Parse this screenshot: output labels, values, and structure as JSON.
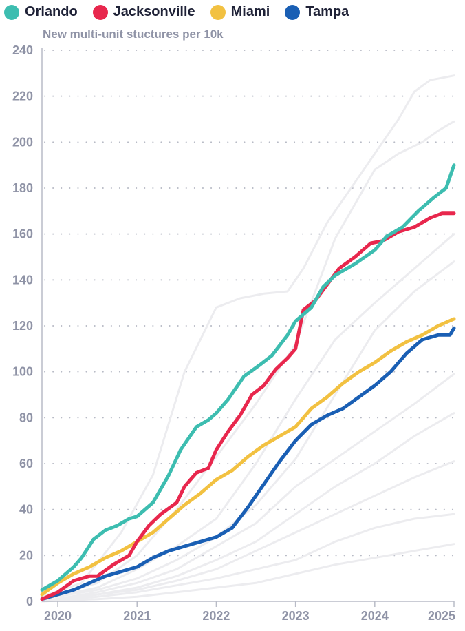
{
  "chart_data": {
    "type": "line",
    "subtitle": "New multi-unit stuctures per 10k",
    "x_ticks": [
      {
        "label": "2020",
        "value": 2020.0
      },
      {
        "label": "2021",
        "value": 2021.0
      },
      {
        "label": "2022",
        "value": 2022.0
      },
      {
        "label": "2023",
        "value": 2023.0
      },
      {
        "label": "2024",
        "value": 2024.0
      },
      {
        "label": "2025",
        "value": 2025.0
      }
    ],
    "xlim": [
      2019.8,
      2025.0
    ],
    "ylim": [
      0,
      240
    ],
    "y_ticks": [
      0,
      20,
      40,
      60,
      80,
      100,
      120,
      140,
      160,
      180,
      200,
      220,
      240
    ],
    "grid": "horizontal dotted",
    "legend_position": "top-left",
    "series": [
      {
        "name": "Orlando",
        "color": "#3dbdb0",
        "x": [
          2019.8,
          2020.0,
          2020.2,
          2020.3,
          2020.45,
          2020.6,
          2020.75,
          2020.9,
          2021.0,
          2021.2,
          2021.4,
          2021.55,
          2021.75,
          2021.9,
          2022.0,
          2022.15,
          2022.35,
          2022.55,
          2022.7,
          2022.9,
          2023.0,
          2023.2,
          2023.35,
          2023.5,
          2023.75,
          2024.0,
          2024.15,
          2024.35,
          2024.55,
          2024.75,
          2024.9,
          2025.0
        ],
        "y": [
          5,
          9,
          15,
          19,
          27,
          31,
          33,
          36,
          37,
          43,
          55,
          66,
          76,
          79,
          82,
          88,
          98,
          103,
          107,
          116,
          122,
          128,
          137,
          142,
          147,
          153,
          159,
          163,
          170,
          176,
          180,
          190
        ]
      },
      {
        "name": "Jacksonville",
        "color": "#e8274d",
        "x": [
          2019.8,
          2020.0,
          2020.2,
          2020.4,
          2020.5,
          2020.7,
          2020.9,
          2021.0,
          2021.15,
          2021.3,
          2021.5,
          2021.6,
          2021.75,
          2021.9,
          2022.0,
          2022.15,
          2022.3,
          2022.45,
          2022.6,
          2022.75,
          2022.9,
          2023.0,
          2023.1,
          2023.25,
          2023.4,
          2023.55,
          2023.75,
          2023.95,
          2024.1,
          2024.3,
          2024.5,
          2024.7,
          2024.85,
          2025.0
        ],
        "y": [
          1,
          4,
          9,
          11,
          11,
          16,
          20,
          26,
          33,
          38,
          43,
          50,
          56,
          58,
          66,
          74,
          81,
          90,
          94,
          101,
          106,
          110,
          127,
          131,
          138,
          145,
          150,
          156,
          157,
          161,
          163,
          167,
          169,
          169
        ]
      },
      {
        "name": "Miami",
        "color": "#f2c141",
        "x": [
          2019.8,
          2020.0,
          2020.2,
          2020.4,
          2020.6,
          2020.8,
          2021.0,
          2021.2,
          2021.4,
          2021.6,
          2021.8,
          2022.0,
          2022.2,
          2022.4,
          2022.6,
          2022.8,
          2023.0,
          2023.2,
          2023.4,
          2023.6,
          2023.8,
          2024.0,
          2024.2,
          2024.4,
          2024.6,
          2024.8,
          2025.0
        ],
        "y": [
          3,
          8,
          12,
          15,
          19,
          22,
          26,
          30,
          36,
          42,
          47,
          53,
          57,
          63,
          68,
          72,
          76,
          84,
          89,
          95,
          100,
          104,
          109,
          113,
          116,
          120,
          123
        ]
      },
      {
        "name": "Tampa",
        "color": "#1a5fb4",
        "x": [
          2019.8,
          2020.0,
          2020.2,
          2020.4,
          2020.6,
          2020.8,
          2021.0,
          2021.2,
          2021.4,
          2021.6,
          2021.8,
          2022.0,
          2022.2,
          2022.4,
          2022.6,
          2022.8,
          2023.0,
          2023.2,
          2023.4,
          2023.6,
          2023.8,
          2024.0,
          2024.2,
          2024.4,
          2024.6,
          2024.8,
          2024.95,
          2025.0
        ],
        "y": [
          1,
          3,
          5,
          8,
          11,
          13,
          15,
          19,
          22,
          24,
          26,
          28,
          32,
          41,
          51,
          61,
          70,
          77,
          81,
          84,
          89,
          94,
          100,
          108,
          114,
          116,
          116,
          119
        ]
      }
    ],
    "background_series": [
      {
        "x": [
          2019.8,
          2020.3,
          2020.8,
          2021.2,
          2021.6,
          2022.0,
          2022.3,
          2022.6,
          2022.9,
          2023.1,
          2023.4,
          2023.7,
          2024.0,
          2024.3,
          2024.5,
          2024.7,
          2025.0
        ],
        "y": [
          2,
          8,
          30,
          55,
          100,
          128,
          132,
          134,
          135,
          145,
          165,
          180,
          195,
          210,
          222,
          227,
          229
        ]
      },
      {
        "x": [
          2019.8,
          2020.5,
          2021.0,
          2021.5,
          2022.0,
          2022.5,
          2023.0,
          2023.5,
          2024.0,
          2024.3,
          2024.6,
          2024.8,
          2025.0
        ],
        "y": [
          1,
          8,
          20,
          40,
          63,
          86,
          112,
          158,
          188,
          195,
          200,
          205,
          209
        ]
      },
      {
        "x": [
          2019.8,
          2020.5,
          2021.0,
          2021.5,
          2022.0,
          2022.5,
          2023.0,
          2023.5,
          2024.0,
          2024.5,
          2025.0
        ],
        "y": [
          1,
          6,
          14,
          24,
          36,
          60,
          88,
          114,
          130,
          145,
          160
        ]
      },
      {
        "x": [
          2019.8,
          2020.5,
          2021.0,
          2021.5,
          2022.0,
          2022.5,
          2023.0,
          2023.5,
          2024.0,
          2024.5,
          2025.0
        ],
        "y": [
          1,
          5,
          10,
          18,
          28,
          42,
          62,
          90,
          118,
          135,
          148
        ]
      },
      {
        "x": [
          2019.8,
          2020.5,
          2021.0,
          2021.5,
          2022.0,
          2022.5,
          2023.0,
          2023.5,
          2024.0,
          2024.5,
          2025.0
        ],
        "y": [
          0,
          4,
          8,
          14,
          24,
          34,
          50,
          62,
          74,
          86,
          99
        ]
      },
      {
        "x": [
          2019.8,
          2020.5,
          2021.0,
          2021.5,
          2022.0,
          2022.5,
          2023.0,
          2023.5,
          2024.0,
          2024.5,
          2025.0
        ],
        "y": [
          0,
          3,
          6,
          11,
          18,
          26,
          38,
          50,
          60,
          72,
          82
        ]
      },
      {
        "x": [
          2019.8,
          2020.5,
          2021.0,
          2021.5,
          2022.0,
          2022.5,
          2023.0,
          2023.5,
          2024.0,
          2024.5,
          2025.0
        ],
        "y": [
          0,
          3,
          5,
          9,
          14,
          22,
          30,
          38,
          46,
          54,
          61
        ]
      },
      {
        "x": [
          2019.8,
          2020.5,
          2021.0,
          2021.5,
          2022.0,
          2022.5,
          2023.0,
          2023.5,
          2024.0,
          2024.5,
          2025.0
        ],
        "y": [
          0,
          2,
          4,
          7,
          10,
          14,
          18,
          26,
          32,
          36,
          38
        ]
      },
      {
        "x": [
          2019.8,
          2020.5,
          2021.0,
          2021.5,
          2022.0,
          2022.5,
          2023.0,
          2023.5,
          2024.0,
          2024.5,
          2025.0
        ],
        "y": [
          0,
          1,
          2,
          4,
          6,
          8,
          12,
          16,
          19,
          22,
          25
        ]
      }
    ]
  }
}
